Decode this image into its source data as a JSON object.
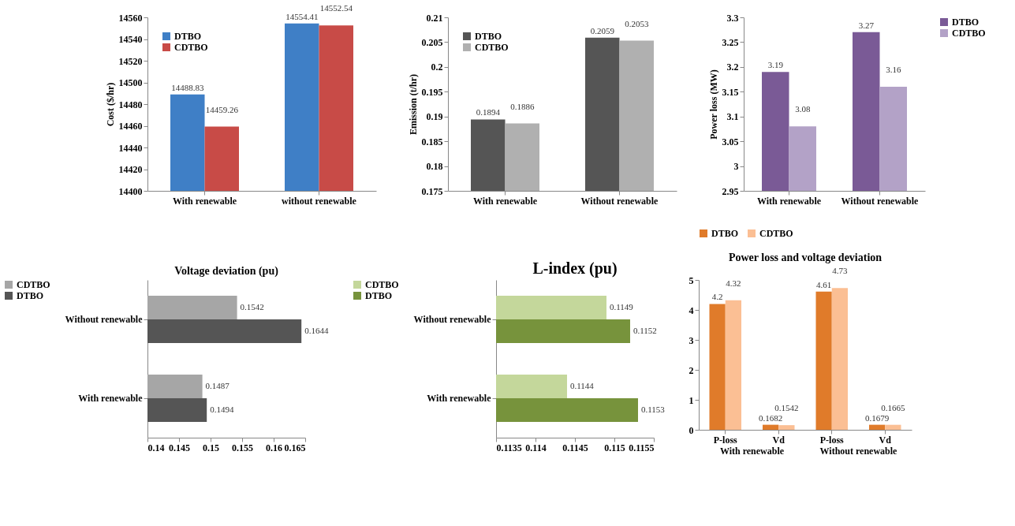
{
  "chart_data": [
    {
      "type": "bar",
      "ylabel": "Cost ($/hr)",
      "categories": [
        "With renewable",
        "without renewable"
      ],
      "series": [
        {
          "name": "DTBO",
          "color": "#3f7fc6",
          "values": [
            14488.83,
            14554.41
          ]
        },
        {
          "name": "CDTBO",
          "color": "#c84b47",
          "values": [
            14459.26,
            14552.54
          ]
        }
      ],
      "ylim": [
        14400,
        14560
      ],
      "yticks": [
        14400,
        14420,
        14440,
        14460,
        14480,
        14500,
        14520,
        14540,
        14560
      ],
      "legend": "top left",
      "data_labels": true
    },
    {
      "type": "bar",
      "ylabel": "Emission (t/hr)",
      "categories": [
        "With renewable",
        "Without renewable"
      ],
      "series": [
        {
          "name": "DTBO",
          "color": "#555555",
          "values": [
            0.1894,
            0.2059
          ]
        },
        {
          "name": "CDTBO",
          "color": "#b0b0b0",
          "values": [
            0.1886,
            0.2053
          ]
        }
      ],
      "ylim": [
        0.175,
        0.21
      ],
      "yticks": [
        0.175,
        0.18,
        0.185,
        0.19,
        0.195,
        0.2,
        0.205,
        0.21
      ],
      "legend": "top left",
      "data_labels": true
    },
    {
      "type": "bar",
      "ylabel": "Power loss (MW)",
      "categories": [
        "With renewable",
        "Without renewable"
      ],
      "series": [
        {
          "name": "DTBO",
          "color": "#7a5a96",
          "values": [
            3.19,
            3.27
          ]
        },
        {
          "name": "CDTBO",
          "color": "#b3a2c7",
          "values": [
            3.08,
            3.16
          ]
        }
      ],
      "ylim": [
        2.95,
        3.3
      ],
      "yticks": [
        2.95,
        3,
        3.05,
        3.1,
        3.15,
        3.2,
        3.25,
        3.3
      ],
      "legend": "right",
      "data_labels": true
    },
    {
      "type": "bar",
      "orientation": "horizontal",
      "title": "Voltage deviation (pu)",
      "categories": [
        "Without renewable",
        "With renewable"
      ],
      "series": [
        {
          "name": "CDTBO",
          "color": "#a6a6a6",
          "values": [
            0.1542,
            0.1487
          ]
        },
        {
          "name": "DTBO",
          "color": "#555555",
          "values": [
            0.1644,
            0.1494
          ]
        }
      ],
      "xlim": [
        0.14,
        0.165
      ],
      "xticks": [
        0.14,
        0.145,
        0.15,
        0.155,
        0.16,
        0.165
      ],
      "legend": "left",
      "data_labels": true
    },
    {
      "type": "bar",
      "orientation": "horizontal",
      "title": "L-index (pu)",
      "categories": [
        "Without renewable",
        "With renewable"
      ],
      "series": [
        {
          "name": "CDTBO",
          "color": "#c4d79b",
          "values": [
            0.1149,
            0.1144
          ]
        },
        {
          "name": "DTBO",
          "color": "#77933c",
          "values": [
            0.1152,
            0.1153
          ]
        }
      ],
      "xlim": [
        0.1135,
        0.1155
      ],
      "xticks": [
        0.1135,
        0.114,
        0.1145,
        0.115,
        0.1155
      ],
      "legend": "left",
      "data_labels": true
    },
    {
      "type": "bar",
      "title": "Power loss and voltage deviation",
      "categories": [
        "P-loss",
        "Vd",
        "P-loss",
        "Vd"
      ],
      "series": [
        {
          "name": "DTBO",
          "color": "#e07b2a",
          "values": [
            4.2,
            0.1682,
            4.61,
            0.1679
          ]
        },
        {
          "name": "CDTBO",
          "color": "#fbbf94",
          "values": [
            4.32,
            0.1542,
            4.73,
            0.1665
          ]
        }
      ],
      "ylim": [
        0,
        5
      ],
      "yticks": [
        0,
        1,
        2,
        3,
        4,
        5
      ],
      "legend": "top",
      "data_labels": true,
      "annotations": [
        "With renewable",
        "Without renewable"
      ]
    }
  ]
}
